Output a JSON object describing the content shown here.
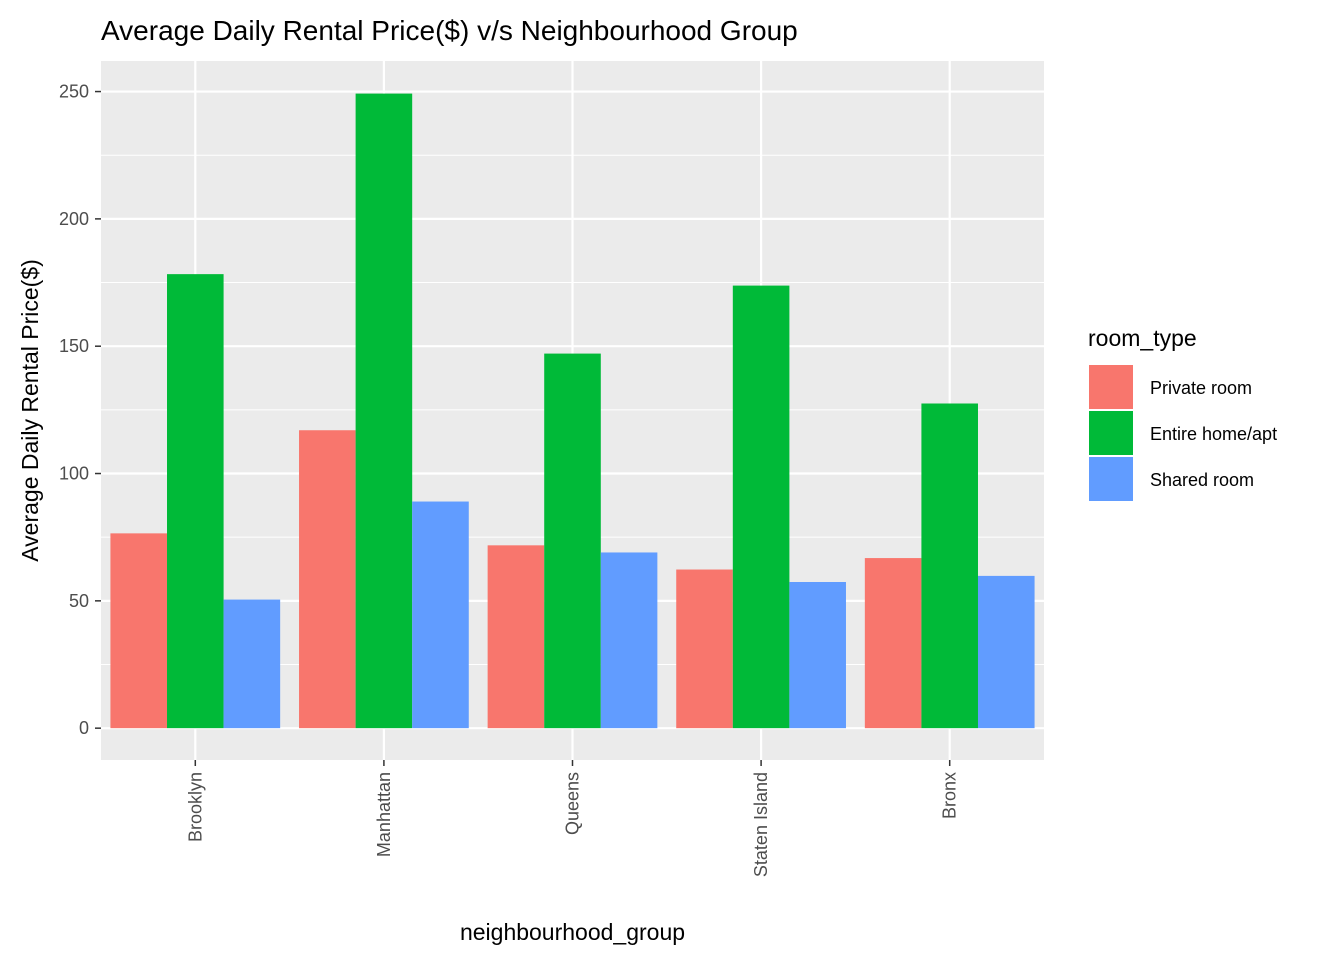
{
  "chart_data": {
    "type": "bar",
    "title": "Average Daily Rental Price($) v/s Neighbourhood Group",
    "xlabel": "neighbourhood_group",
    "ylabel": "Average Daily Rental Price($)",
    "categories": [
      "Brooklyn",
      "Manhattan",
      "Queens",
      "Staten Island",
      "Bronx"
    ],
    "series": [
      {
        "name": "Private room",
        "color": "#F8766D",
        "values": [
          76.5,
          117,
          71.8,
          62.3,
          66.8
        ]
      },
      {
        "name": "Entire home/apt",
        "color": "#00BA38",
        "values": [
          178.3,
          249.2,
          147.1,
          173.8,
          127.5
        ]
      },
      {
        "name": "Shared room",
        "color": "#619CFF",
        "values": [
          50.5,
          89,
          69,
          57.4,
          59.8
        ]
      }
    ],
    "ylim": [
      -12.5,
      262
    ],
    "yticks": [
      0,
      50,
      100,
      150,
      200,
      250
    ],
    "legend": {
      "title": "room_type",
      "position": "right"
    },
    "grid": true,
    "panel_background": "#EBEBEB"
  }
}
